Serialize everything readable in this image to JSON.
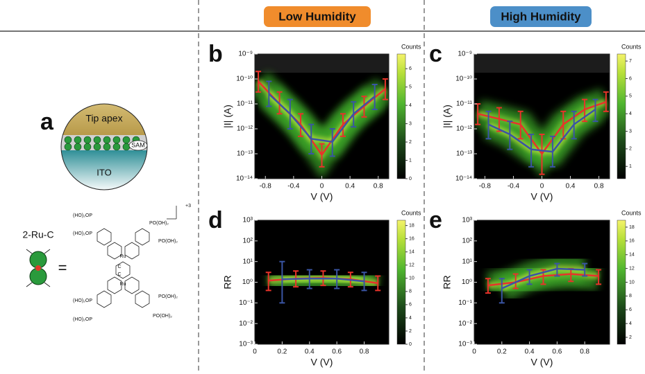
{
  "headers": {
    "low": "Low Humidity",
    "high": "High Humidity"
  },
  "panel_a": {
    "label": "a",
    "tip": "Tip apex",
    "sam": "SAM",
    "substrate": "ITO",
    "molecule": "2-Ru-C",
    "equals": "=",
    "charge": "+3",
    "left_groups": [
      "(HO)₂OP",
      "(HO)₂OP",
      "(HO)₂OP",
      "(HO)₂OP"
    ],
    "right_groups": [
      "PO(OH)₂",
      "PO(OH)₂",
      "PO(OH)₂",
      "PO(OH)₂"
    ],
    "metals": [
      "Ru",
      "Ru"
    ],
    "linker": [
      "C",
      "C"
    ]
  },
  "chart_data": [
    {
      "type": "line",
      "panel": "b",
      "xlabel": "V (V)",
      "ylabel": "|I| (A)",
      "ylog": true,
      "xlim": [
        -0.95,
        0.95
      ],
      "xticks": [
        -0.8,
        -0.4,
        0,
        0.4,
        0.8
      ],
      "ylim": [
        1e-14,
        1e-09
      ],
      "yticks": [
        {
          "value": 1e-14,
          "label": "10⁻¹⁴"
        },
        {
          "value": 1e-13,
          "label": "10⁻¹³"
        },
        {
          "value": 1e-12,
          "label": "10⁻¹²"
        },
        {
          "value": 1e-11,
          "label": "10⁻¹¹"
        },
        {
          "value": 1e-10,
          "label": "10⁻¹⁰"
        },
        {
          "value": 1e-09,
          "label": "10⁻⁹"
        }
      ],
      "colorbar": {
        "label": "Counts",
        "lim": [
          0,
          6.8
        ],
        "ticks": [
          0,
          1,
          2,
          3,
          4,
          5,
          6
        ]
      },
      "series": [
        {
          "color": "#e8332a",
          "x": [
            -0.9,
            -0.6,
            -0.3,
            0,
            0.3,
            0.6,
            0.9
          ],
          "values": [
            8e-11,
            1e-11,
            1.5e-12,
            9e-14,
            1.5e-12,
            8e-12,
            4e-11
          ],
          "lower": [
            3e-11,
            4e-12,
            5e-13,
            3e-14,
            5e-13,
            3e-12,
            1.5e-11
          ],
          "upper": [
            2e-10,
            3e-11,
            4e-12,
            2.5e-13,
            4e-12,
            2e-11,
            1e-10
          ]
        },
        {
          "color": "#3a55a4",
          "x": [
            -0.75,
            -0.45,
            -0.15,
            0.15,
            0.45,
            0.75
          ],
          "values": [
            2.5e-11,
            4e-12,
            4e-13,
            3e-13,
            4e-12,
            2e-11
          ],
          "lower": [
            8e-12,
            1e-12,
            1e-13,
            8e-14,
            1.2e-12,
            6e-12
          ],
          "upper": [
            8e-11,
            1.5e-11,
            1.5e-12,
            1e-12,
            1.2e-11,
            6e-11
          ]
        }
      ]
    },
    {
      "type": "line",
      "panel": "c",
      "xlabel": "V (V)",
      "ylabel": "|I| (A)",
      "ylog": true,
      "xlim": [
        -0.95,
        0.95
      ],
      "xticks": [
        -0.8,
        -0.4,
        0,
        0.4,
        0.8
      ],
      "ylim": [
        1e-14,
        1e-09
      ],
      "yticks": [
        {
          "value": 1e-14,
          "label": "10⁻¹⁴"
        },
        {
          "value": 1e-13,
          "label": "10⁻¹³"
        },
        {
          "value": 1e-12,
          "label": "10⁻¹²"
        },
        {
          "value": 1e-11,
          "label": "10⁻¹¹"
        },
        {
          "value": 1e-10,
          "label": "10⁻¹⁰"
        },
        {
          "value": 1e-09,
          "label": "10⁻⁹"
        }
      ],
      "colorbar": {
        "label": "Counts",
        "lim": [
          0.3,
          7.4
        ],
        "ticks": [
          1,
          2,
          3,
          4,
          5,
          6,
          7
        ]
      },
      "series": [
        {
          "color": "#e8332a",
          "x": [
            -0.9,
            -0.6,
            -0.3,
            0,
            0.3,
            0.6,
            0.9
          ],
          "values": [
            4e-12,
            2.5e-12,
            1.5e-12,
            1e-13,
            1.5e-12,
            6e-12,
            1.2e-11
          ],
          "lower": [
            1.5e-12,
            8e-13,
            4e-13,
            1.5e-14,
            4e-13,
            2e-12,
            5e-12
          ],
          "upper": [
            1e-11,
            7e-12,
            5e-12,
            6e-13,
            5e-12,
            1.5e-11,
            3e-11
          ]
        },
        {
          "color": "#3a55a4",
          "x": [
            -0.75,
            -0.45,
            -0.15,
            0.15,
            0.45,
            0.75
          ],
          "values": [
            1.5e-12,
            6e-13,
            1.5e-13,
            1.2e-13,
            1.5e-12,
            6e-12
          ],
          "lower": [
            4e-13,
            1.5e-13,
            3e-14,
            3e-14,
            4e-13,
            2e-12
          ],
          "upper": [
            5e-12,
            2e-12,
            6e-13,
            5e-13,
            5e-12,
            1.5e-11
          ]
        }
      ]
    },
    {
      "type": "line",
      "panel": "d",
      "xlabel": "V (V)",
      "ylabel": "RR",
      "ylog": true,
      "xlim": [
        0,
        0.98
      ],
      "xticks": [
        0,
        0.2,
        0.4,
        0.6,
        0.8
      ],
      "ylim": [
        0.001,
        1000
      ],
      "yticks": [
        {
          "value": 0.001,
          "label": "10⁻³"
        },
        {
          "value": 0.01,
          "label": "10⁻²"
        },
        {
          "value": 0.1,
          "label": "10⁻¹"
        },
        {
          "value": 1,
          "label": "10⁰"
        },
        {
          "value": 10,
          "label": "10¹"
        },
        {
          "value": 100,
          "label": "10²"
        },
        {
          "value": 1000,
          "label": "10³"
        }
      ],
      "colorbar": {
        "label": "Counts",
        "lim": [
          0,
          18.8
        ],
        "ticks": [
          0,
          2,
          4,
          6,
          8,
          10,
          12,
          14,
          16,
          18
        ]
      },
      "series": [
        {
          "color": "#e8332a",
          "x": [
            0.1,
            0.3,
            0.5,
            0.7,
            0.9
          ],
          "values": [
            1.2,
            1.5,
            1.6,
            1.4,
            0.9
          ],
          "lower": [
            0.4,
            0.6,
            0.7,
            0.6,
            0.4
          ],
          "upper": [
            3,
            3.5,
            3.5,
            3,
            2
          ]
        },
        {
          "color": "#3a55a4",
          "x": [
            0.2,
            0.4,
            0.6,
            0.8
          ],
          "values": [
            1.4,
            1.5,
            1.5,
            1.1
          ],
          "lower": [
            0.1,
            0.5,
            0.5,
            0.4
          ],
          "upper": [
            10,
            4,
            4,
            3
          ]
        }
      ]
    },
    {
      "type": "line",
      "panel": "e",
      "xlabel": "V (V)",
      "ylabel": "RR",
      "ylog": true,
      "xlim": [
        0,
        0.98
      ],
      "xticks": [
        0,
        0.2,
        0.4,
        0.6,
        0.8
      ],
      "ylim": [
        0.001,
        1000
      ],
      "yticks": [
        {
          "value": 0.001,
          "label": "10⁻³"
        },
        {
          "value": 0.01,
          "label": "10⁻²"
        },
        {
          "value": 0.1,
          "label": "10⁻¹"
        },
        {
          "value": 1,
          "label": "10⁰"
        },
        {
          "value": 10,
          "label": "10¹"
        },
        {
          "value": 100,
          "label": "10²"
        },
        {
          "value": 1000,
          "label": "10³"
        }
      ],
      "colorbar": {
        "label": "Counts",
        "lim": [
          1,
          19
        ],
        "ticks": [
          2,
          4,
          6,
          8,
          10,
          12,
          14,
          16,
          18
        ]
      },
      "series": [
        {
          "color": "#e8332a",
          "x": [
            0.1,
            0.3,
            0.5,
            0.7,
            0.9
          ],
          "values": [
            0.7,
            1,
            2,
            2.5,
            2
          ],
          "lower": [
            0.3,
            0.5,
            0.8,
            1.1,
            0.8
          ],
          "upper": [
            1.5,
            2.5,
            4,
            4.5,
            4
          ]
        },
        {
          "color": "#3a55a4",
          "x": [
            0.2,
            0.4,
            0.6,
            0.8
          ],
          "values": [
            0.5,
            2,
            4.5,
            4
          ],
          "lower": [
            0.1,
            0.8,
            2,
            2
          ],
          "upper": [
            1.5,
            4,
            8,
            8
          ]
        }
      ]
    }
  ]
}
